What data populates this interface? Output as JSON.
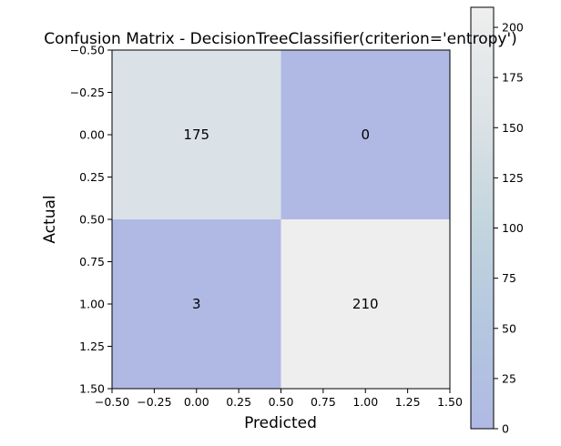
{
  "chart_data": {
    "type": "heatmap",
    "title": "Confusion Matrix - DecisionTreeClassifier(criterion='entropy')",
    "xlabel": "Predicted",
    "ylabel": "Actual",
    "x_ticks": [
      "−0.50",
      "−0.25",
      "0.00",
      "0.25",
      "0.50",
      "0.75",
      "1.00",
      "1.25",
      "1.50"
    ],
    "y_ticks": [
      "−0.50",
      "−0.25",
      "0.00",
      "0.25",
      "0.50",
      "0.75",
      "1.00",
      "1.25",
      "1.50"
    ],
    "xlim": [
      -0.5,
      1.5
    ],
    "ylim": [
      1.5,
      -0.5
    ],
    "matrix": [
      [
        175,
        0
      ],
      [
        3,
        210
      ]
    ],
    "cell_labels": [
      [
        "175",
        "0"
      ],
      [
        "3",
        "210"
      ]
    ],
    "colorbar": {
      "ticks": [
        "0",
        "25",
        "50",
        "75",
        "100",
        "125",
        "150",
        "175",
        "200"
      ],
      "vmin": 0,
      "vmax": 210,
      "colormap": [
        "#b0b9e4",
        "#b4c7df",
        "#c4d6de",
        "#dde3e6",
        "#eeeeee"
      ]
    },
    "cell_colors": [
      [
        "#dbe2e7",
        "#b0b9e4"
      ],
      [
        "#b0b9e4",
        "#eeeeee"
      ]
    ],
    "grid": false
  }
}
